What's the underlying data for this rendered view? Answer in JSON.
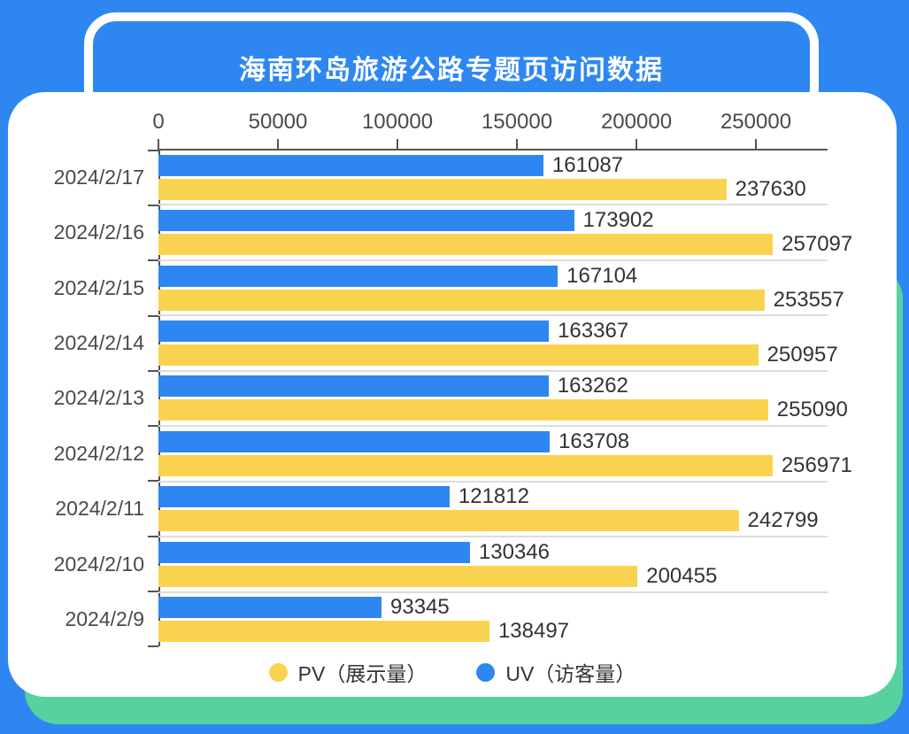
{
  "colors": {
    "background_blue": "#2E87F0",
    "bar_blue": "#2E87F0",
    "bar_yellow": "#F9D34F",
    "accent_green": "#57D1A0",
    "card_white": "#ffffff",
    "axis_line": "#555555",
    "separator": "#dcdcdc",
    "label_text": "#333333"
  },
  "header": {
    "title": "海南环岛旅游公路专题页访问数据"
  },
  "chart_data": {
    "type": "bar",
    "orientation": "horizontal",
    "title": "海南环岛旅游公路专题页访问数据",
    "categories": [
      "2024/2/17",
      "2024/2/16",
      "2024/2/15",
      "2024/2/14",
      "2024/2/13",
      "2024/2/12",
      "2024/2/11",
      "2024/2/10",
      "2024/2/9"
    ],
    "series": [
      {
        "name": "UV（访客量）",
        "color": "#2E87F0",
        "values": [
          161087,
          173902,
          167104,
          163367,
          163262,
          163708,
          121812,
          130346,
          93345
        ]
      },
      {
        "name": "PV（展示量）",
        "color": "#F9D34F",
        "values": [
          237630,
          257097,
          253557,
          250957,
          255090,
          256971,
          242799,
          200455,
          138497
        ]
      }
    ],
    "bar_order_per_category": [
      "UV（访客量）",
      "PV（展示量）"
    ],
    "x_axis": {
      "position": "top",
      "ticks": [
        0,
        50000,
        100000,
        150000,
        200000,
        250000
      ],
      "max": 280000
    },
    "grid": "category-separators",
    "data_labels": "end-of-bar",
    "legend": {
      "position": "bottom",
      "items": [
        {
          "label": "PV（展示量）",
          "color": "#F9D34F"
        },
        {
          "label": "UV（访客量）",
          "color": "#2E87F0"
        }
      ]
    }
  }
}
